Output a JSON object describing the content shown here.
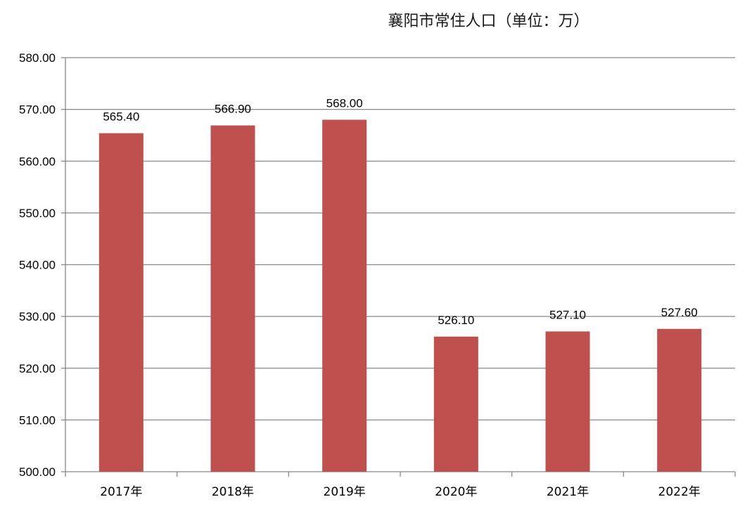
{
  "chart_data": {
    "type": "bar",
    "title": "襄阳市常住人口（单位：万）",
    "categories": [
      "2017年",
      "2018年",
      "2019年",
      "2020年",
      "2021年",
      "2022年"
    ],
    "values": [
      565.4,
      566.9,
      568.0,
      526.1,
      527.1,
      527.6
    ],
    "data_labels": [
      "565.40",
      "566.90",
      "568.00",
      "526.10",
      "527.10",
      "527.60"
    ],
    "ylim": [
      500,
      580
    ],
    "yticks": [
      500,
      510,
      520,
      530,
      540,
      550,
      560,
      570,
      580
    ],
    "ytick_labels": [
      "500.00",
      "510.00",
      "520.00",
      "530.00",
      "540.00",
      "550.00",
      "560.00",
      "570.00",
      "580.00"
    ],
    "xlabel": "",
    "ylabel": "",
    "grid": true,
    "legend": "none",
    "colors": {
      "bar": "#C0504D",
      "grid": "#888888",
      "axis": "#888888"
    }
  }
}
